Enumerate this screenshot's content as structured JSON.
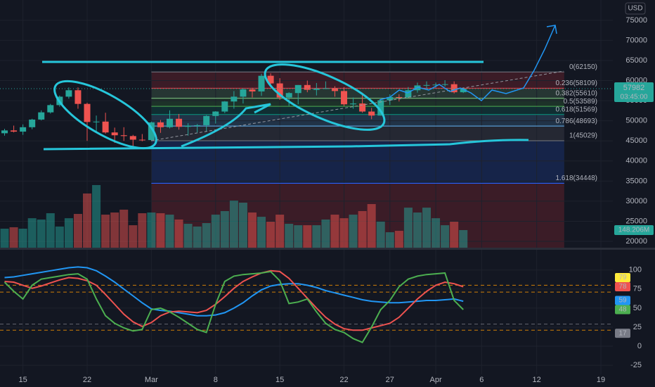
{
  "chart_data": {
    "type": "candlestick",
    "currency": "USD",
    "countdown": "03:45:00",
    "x": [
      44,
      45,
      46,
      47,
      48,
      49,
      50,
      51,
      52,
      53,
      54,
      55,
      56,
      57,
      58,
      59,
      60,
      61,
      62,
      63,
      64,
      65,
      66,
      67,
      68,
      69,
      70,
      71,
      72,
      73,
      74,
      75,
      76,
      77,
      78,
      79,
      80,
      81,
      82,
      83,
      84,
      85,
      86,
      87,
      88,
      89,
      90,
      91,
      92,
      93,
      94
    ],
    "xlim": [
      43.5,
      110.3
    ],
    "xticks": [
      {
        "value": 46,
        "label": "15"
      },
      {
        "value": 53,
        "label": "22"
      },
      {
        "value": 60,
        "label": "Mar"
      },
      {
        "value": 67,
        "label": "8"
      },
      {
        "value": 74,
        "label": "15"
      },
      {
        "value": 81,
        "label": "22"
      },
      {
        "value": 86,
        "label": "27"
      },
      {
        "value": 91,
        "label": "Apr"
      },
      {
        "value": 96,
        "label": "6"
      },
      {
        "value": 102,
        "label": "12"
      },
      {
        "value": 109,
        "label": "19"
      }
    ],
    "ylim": [
      18430,
      80050
    ],
    "yticks": [
      20000,
      25000,
      30000,
      35000,
      40000,
      45000,
      50000,
      55000,
      60000,
      65000,
      70000,
      75000
    ],
    "grid": true,
    "up_color": "#26a69a",
    "down_color": "#ef5350",
    "open": [
      46900,
      47600,
      47300,
      48400,
      50300,
      52100,
      53900,
      56000,
      57600,
      54200,
      49700,
      49800,
      47100,
      46400,
      46200,
      45300,
      45200,
      49600,
      48400,
      50500,
      48500,
      48800,
      48900,
      51200,
      52300,
      54800,
      56000,
      57800,
      57300,
      61200,
      59300,
      55800,
      56900,
      58900,
      57700,
      58000,
      58100,
      57400,
      54100,
      54300,
      52300,
      51300,
      55100,
      55900,
      55800,
      57600,
      58800,
      58900,
      59000,
      59100,
      57100
    ],
    "high": [
      48000,
      48800,
      49100,
      50500,
      52600,
      54200,
      56300,
      58300,
      58300,
      54500,
      51300,
      52000,
      48300,
      48400,
      46500,
      46700,
      49800,
      50200,
      52600,
      51700,
      49400,
      49200,
      51400,
      52400,
      54900,
      57400,
      58100,
      58200,
      61700,
      61800,
      60600,
      57100,
      58900,
      60000,
      59400,
      59800,
      58600,
      58400,
      55800,
      57000,
      53200,
      55400,
      56600,
      56600,
      58400,
      59500,
      59800,
      59500,
      60100,
      59800,
      58300
    ],
    "low": [
      46300,
      47100,
      46500,
      47900,
      50100,
      51800,
      53500,
      55500,
      53000,
      45000,
      47100,
      46800,
      44500,
      45000,
      43100,
      44900,
      45000,
      47000,
      48100,
      47800,
      46300,
      47100,
      47300,
      49300,
      51900,
      53000,
      54300,
      55800,
      56200,
      59000,
      55200,
      53700,
      54100,
      57100,
      56300,
      57900,
      56000,
      53700,
      53000,
      52000,
      50400,
      51300,
      53900,
      54800,
      55700,
      57000,
      57900,
      58200,
      58500,
      56800,
      56900
    ],
    "close": [
      47600,
      47300,
      48400,
      50300,
      52100,
      53900,
      56000,
      57600,
      54200,
      49700,
      49800,
      47100,
      46400,
      46200,
      45300,
      45200,
      49600,
      48400,
      50500,
      48500,
      48800,
      48900,
      51200,
      52300,
      54800,
      56000,
      57800,
      57300,
      61200,
      59300,
      55800,
      56900,
      58900,
      57700,
      58000,
      58100,
      57400,
      54100,
      54300,
      52300,
      51300,
      55100,
      55900,
      55800,
      57600,
      58800,
      58900,
      59000,
      59100,
      57100,
      57982
    ],
    "volume": {
      "values": [
        160,
        172,
        160,
        248,
        237,
        290,
        178,
        248,
        284,
        456,
        527,
        278,
        296,
        320,
        189,
        290,
        296,
        290,
        278,
        237,
        201,
        178,
        207,
        278,
        308,
        396,
        379,
        296,
        260,
        219,
        278,
        201,
        189,
        189,
        189,
        237,
        278,
        248,
        278,
        308,
        367,
        219,
        130,
        142,
        337,
        296,
        337,
        248,
        189,
        219,
        148.206
      ],
      "last_label": "148.206M"
    },
    "fib": {
      "x": [
        60,
        105
      ],
      "below_color": "#f23645",
      "levels": [
        {
          "value": 62150,
          "label": "0(62150)",
          "color": "#787b86"
        },
        {
          "value": 58109,
          "label": "0.236(58109)",
          "color": "#f23645"
        },
        {
          "value": 55610,
          "label": "0.382(55610)",
          "color": "#81c784"
        },
        {
          "value": 53589,
          "label": "0.5(53589)",
          "color": "#4caf50"
        },
        {
          "value": 51569,
          "label": "0.618(51569)",
          "color": "#089981"
        },
        {
          "value": 48693,
          "label": "0.786(48693)",
          "color": "#64b5f6"
        },
        {
          "value": 45029,
          "label": "1(45029)",
          "color": "#787b86"
        },
        {
          "value": 34448,
          "label": "1.618(34448)",
          "color": "#2962ff"
        }
      ]
    },
    "oscillator": {
      "ylim": [
        -36.9,
        126.5
      ],
      "yticks": [
        -25,
        0,
        25,
        50,
        75,
        100
      ],
      "levels": [
        {
          "value": 80,
          "color": "#ff9800"
        },
        {
          "value": 71,
          "color": "#ff9800"
        },
        {
          "value": 29,
          "color": "#787b86"
        },
        {
          "value": 21,
          "color": "#ff9800"
        }
      ],
      "series": [
        {
          "color": "#2196f3",
          "values": [
            90,
            91,
            93,
            95,
            97,
            99,
            101,
            103,
            104,
            103,
            99,
            92,
            84,
            75,
            66,
            57,
            49,
            47,
            46,
            44,
            42,
            40,
            40,
            41,
            44,
            50,
            57,
            66,
            74,
            79,
            81,
            82,
            82,
            80,
            77,
            73,
            70,
            67,
            64,
            61,
            59,
            58,
            57,
            57,
            58,
            59,
            60,
            60,
            61,
            62,
            59
          ]
        },
        {
          "color": "#ef5350",
          "values": [
            85,
            84,
            80,
            76,
            79,
            83,
            87,
            90,
            89,
            86,
            80,
            68,
            55,
            42,
            32,
            26,
            31,
            40,
            45,
            46,
            45,
            44,
            47,
            55,
            65,
            76,
            85,
            91,
            96,
            99,
            98,
            89,
            76,
            63,
            50,
            38,
            29,
            23,
            21,
            21,
            24,
            27,
            30,
            38,
            50,
            62,
            72,
            80,
            84,
            82,
            78
          ]
        },
        {
          "color": "#4caf50",
          "values": [
            84,
            72,
            62,
            80,
            88,
            90,
            92,
            94,
            95,
            88,
            62,
            40,
            30,
            24,
            20,
            22,
            48,
            50,
            45,
            38,
            30,
            22,
            18,
            55,
            85,
            92,
            94,
            95,
            96,
            98,
            86,
            56,
            58,
            62,
            45,
            30,
            22,
            18,
            10,
            5,
            25,
            48,
            60,
            78,
            88,
            92,
            94,
            95,
            96,
            60,
            48
          ]
        }
      ],
      "tags": [
        {
          "value": 79,
          "color": "#ffeb3b",
          "text_color": "#131722"
        },
        {
          "value": 78,
          "color": "#ef5350",
          "text_color": "#ffffff"
        },
        {
          "value": 59,
          "color": "#2196f3",
          "text_color": "#ffffff"
        },
        {
          "value": 48,
          "color": "#4caf50",
          "text_color": "#ffffff"
        },
        {
          "value": 17,
          "color": "#787b86",
          "text_color": "#ffffff"
        }
      ]
    }
  }
}
